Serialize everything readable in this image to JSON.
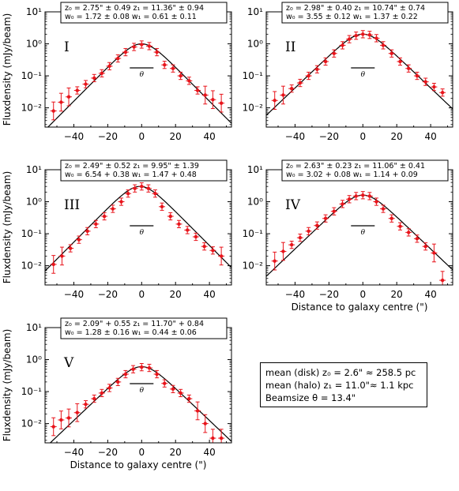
{
  "chart_data": [
    {
      "type": "scatter",
      "panel": "I",
      "fit_text": [
        "z₀ = 2.75\" ± 0.49 z₁ = 11.36\" ± 0.94",
        "w₀ = 1.72 ± 0.08 w₁ = 0.61 ± 0.11"
      ],
      "theta_label": "θ",
      "ylabel": "Fluxdensity (mJy/beam)",
      "xlabel": "",
      "xlim": [
        -57,
        53
      ],
      "ylim": [
        0.0025,
        10
      ],
      "yscale": "log",
      "x_ticks": [
        "−40",
        "−20",
        "0",
        "20",
        "40"
      ],
      "y_ticks": [
        "10⁻²",
        "10⁻¹",
        "10⁰",
        "10¹"
      ],
      "data": [
        {
          "x": -52,
          "y": 0.008
        },
        {
          "x": -47.5,
          "y": 0.015
        },
        {
          "x": -43,
          "y": 0.022
        },
        {
          "x": -38,
          "y": 0.035
        },
        {
          "x": -33,
          "y": 0.055
        },
        {
          "x": -28,
          "y": 0.085
        },
        {
          "x": -23.5,
          "y": 0.12
        },
        {
          "x": -19,
          "y": 0.2
        },
        {
          "x": -14,
          "y": 0.35
        },
        {
          "x": -9.5,
          "y": 0.55
        },
        {
          "x": -4.5,
          "y": 0.8
        },
        {
          "x": 0,
          "y": 0.95
        },
        {
          "x": 4.5,
          "y": 0.85
        },
        {
          "x": 9,
          "y": 0.55
        },
        {
          "x": 13.5,
          "y": 0.22
        },
        {
          "x": 18.5,
          "y": 0.17
        },
        {
          "x": 23,
          "y": 0.1
        },
        {
          "x": 28,
          "y": 0.07
        },
        {
          "x": 33,
          "y": 0.035
        },
        {
          "x": 37.5,
          "y": 0.025
        },
        {
          "x": 42,
          "y": 0.018
        },
        {
          "x": 47,
          "y": 0.014
        }
      ],
      "fit": {
        "x0": 0,
        "peak": 1.0,
        "scale_left": 9.0,
        "scale_right": 9.0
      }
    },
    {
      "type": "scatter",
      "panel": "II",
      "fit_text": [
        "z₀ = 2.98\" ± 0.40 z₁ = 10.74\" ± 0.74",
        "w₀ = 3.55 ± 0.12 w₁ = 1.37 ± 0.22"
      ],
      "theta_label": "θ",
      "ylabel": "",
      "xlabel": "",
      "xlim": [
        -57,
        53
      ],
      "ylim": [
        0.0025,
        10
      ],
      "yscale": "log",
      "x_ticks": [
        "−40",
        "−20",
        "0",
        "20",
        "40"
      ],
      "y_ticks": [
        "10⁻²",
        "10⁻¹",
        "10⁰",
        "10¹"
      ],
      "data": [
        {
          "x": -52,
          "y": 0.017
        },
        {
          "x": -47,
          "y": 0.025
        },
        {
          "x": -42,
          "y": 0.04
        },
        {
          "x": -37,
          "y": 0.06
        },
        {
          "x": -32,
          "y": 0.1
        },
        {
          "x": -27,
          "y": 0.16
        },
        {
          "x": -22,
          "y": 0.28
        },
        {
          "x": -17,
          "y": 0.5
        },
        {
          "x": -12,
          "y": 0.9
        },
        {
          "x": -8,
          "y": 1.4
        },
        {
          "x": -4,
          "y": 1.8
        },
        {
          "x": 0,
          "y": 2.0
        },
        {
          "x": 4,
          "y": 1.9
        },
        {
          "x": 8,
          "y": 1.5
        },
        {
          "x": 12,
          "y": 0.9
        },
        {
          "x": 17,
          "y": 0.5
        },
        {
          "x": 22,
          "y": 0.28
        },
        {
          "x": 27,
          "y": 0.17
        },
        {
          "x": 32,
          "y": 0.1
        },
        {
          "x": 37,
          "y": 0.065
        },
        {
          "x": 42,
          "y": 0.045
        },
        {
          "x": 47,
          "y": 0.03
        }
      ],
      "fit": {
        "x0": 0,
        "peak": 2.0,
        "scale_left": 9.5,
        "scale_right": 9.5
      }
    },
    {
      "type": "scatter",
      "panel": "III",
      "fit_text": [
        "z₀ = 2.49\" ± 0.52 z₁ = 9.95\" ± 1.39",
        "w₀ = 6.54 + 0.38 w₁ = 1.47 + 0.48"
      ],
      "theta_label": "θ",
      "ylabel": "Fluxdensity (mJy/beam)",
      "xlabel": "",
      "xlim": [
        -57,
        53
      ],
      "ylim": [
        0.0025,
        10
      ],
      "yscale": "log",
      "x_ticks": [
        "−40",
        "−20",
        "0",
        "20",
        "40"
      ],
      "y_ticks": [
        "10⁻²",
        "10⁻¹",
        "10⁰",
        "10¹"
      ],
      "data": [
        {
          "x": -52,
          "y": 0.011
        },
        {
          "x": -47,
          "y": 0.02
        },
        {
          "x": -42,
          "y": 0.035
        },
        {
          "x": -37,
          "y": 0.065
        },
        {
          "x": -32,
          "y": 0.12
        },
        {
          "x": -27,
          "y": 0.2
        },
        {
          "x": -22,
          "y": 0.35
        },
        {
          "x": -17,
          "y": 0.6
        },
        {
          "x": -12,
          "y": 1.0
        },
        {
          "x": -8,
          "y": 1.8
        },
        {
          "x": -4,
          "y": 2.6
        },
        {
          "x": 0,
          "y": 3.0
        },
        {
          "x": 4,
          "y": 2.6
        },
        {
          "x": 8,
          "y": 1.8
        },
        {
          "x": 12,
          "y": 0.7
        },
        {
          "x": 17,
          "y": 0.35
        },
        {
          "x": 22,
          "y": 0.2
        },
        {
          "x": 27,
          "y": 0.13
        },
        {
          "x": 32,
          "y": 0.08
        },
        {
          "x": 37,
          "y": 0.04
        },
        {
          "x": 42,
          "y": 0.03
        },
        {
          "x": 47,
          "y": 0.02
        }
      ],
      "fit": {
        "x0": -1,
        "peak": 3.0,
        "scale_left": 9.0,
        "scale_right": 9.0
      }
    },
    {
      "type": "scatter",
      "panel": "IV",
      "fit_text": [
        "z₀ = 2.63\" ± 0.23 z₁ = 11.06\" ± 0.41",
        "w₀ = 3.02 + 0.08 w₁ = 1.14 + 0.09"
      ],
      "theta_label": "θ",
      "ylabel": "",
      "xlabel": "Distance to galaxy centre (\")",
      "xlim": [
        -57,
        53
      ],
      "ylim": [
        0.0025,
        10
      ],
      "yscale": "log",
      "x_ticks": [
        "−40",
        "−20",
        "0",
        "20",
        "40"
      ],
      "y_ticks": [
        "10⁻²",
        "10⁻¹",
        "10⁰",
        "10¹"
      ],
      "data": [
        {
          "x": -52,
          "y": 0.014
        },
        {
          "x": -47,
          "y": 0.028
        },
        {
          "x": -42,
          "y": 0.045
        },
        {
          "x": -37,
          "y": 0.075
        },
        {
          "x": -32,
          "y": 0.12
        },
        {
          "x": -27,
          "y": 0.18
        },
        {
          "x": -22,
          "y": 0.3
        },
        {
          "x": -17,
          "y": 0.5
        },
        {
          "x": -12,
          "y": 0.85
        },
        {
          "x": -8,
          "y": 1.2
        },
        {
          "x": -4,
          "y": 1.5
        },
        {
          "x": 0,
          "y": 1.6
        },
        {
          "x": 4,
          "y": 1.5
        },
        {
          "x": 8,
          "y": 1.0
        },
        {
          "x": 12,
          "y": 0.6
        },
        {
          "x": 17,
          "y": 0.3
        },
        {
          "x": 22,
          "y": 0.17
        },
        {
          "x": 27,
          "y": 0.11
        },
        {
          "x": 32,
          "y": 0.07
        },
        {
          "x": 37,
          "y": 0.04
        },
        {
          "x": 42,
          "y": 0.025
        },
        {
          "x": 47,
          "y": 0.0035
        }
      ],
      "fit": {
        "x0": 0,
        "peak": 1.6,
        "scale_left": 9.5,
        "scale_right": 9.5
      }
    },
    {
      "type": "scatter",
      "panel": "V",
      "fit_text": [
        "z₀ = 2.09\" + 0.55 z₁ = 11.70\" + 0.84",
        "w₀ = 1.28 ± 0.16 w₁ = 0.44 ± 0.06"
      ],
      "theta_label": "θ",
      "ylabel": "Fluxdensity (mJy/beam)",
      "xlabel": "Distance to galaxy centre (\")",
      "xlim": [
        -57,
        53
      ],
      "ylim": [
        0.0025,
        10
      ],
      "yscale": "log",
      "x_ticks": [
        "−40",
        "−20",
        "0",
        "20",
        "40"
      ],
      "y_ticks": [
        "10⁻²",
        "10⁻¹",
        "10⁰",
        "10¹"
      ],
      "data": [
        {
          "x": -52,
          "y": 0.008
        },
        {
          "x": -47.5,
          "y": 0.013
        },
        {
          "x": -43,
          "y": 0.015
        },
        {
          "x": -38,
          "y": 0.022
        },
        {
          "x": -33,
          "y": 0.04
        },
        {
          "x": -28,
          "y": 0.06
        },
        {
          "x": -23.5,
          "y": 0.09
        },
        {
          "x": -19,
          "y": 0.13
        },
        {
          "x": -14,
          "y": 0.2
        },
        {
          "x": -9.5,
          "y": 0.35
        },
        {
          "x": -5,
          "y": 0.5
        },
        {
          "x": 0,
          "y": 0.58
        },
        {
          "x": 4.5,
          "y": 0.55
        },
        {
          "x": 9,
          "y": 0.35
        },
        {
          "x": 13.5,
          "y": 0.18
        },
        {
          "x": 18.5,
          "y": 0.12
        },
        {
          "x": 23,
          "y": 0.09
        },
        {
          "x": 28,
          "y": 0.06
        },
        {
          "x": 33,
          "y": 0.025
        },
        {
          "x": 37.5,
          "y": 0.01
        },
        {
          "x": 42,
          "y": 0.0035
        },
        {
          "x": 47,
          "y": 0.0035
        }
      ],
      "fit": {
        "x0": 0,
        "peak": 0.6,
        "scale_left": 9.5,
        "scale_right": 9.5
      }
    }
  ],
  "summary": {
    "line1": "mean (disk) z₀ = 2.6\" ≈ 258.5 pc",
    "line2": "mean (halo) z₁ = 11.0\"≈ 1.1 kpc",
    "line3": "Beamsize θ = 13.4\""
  },
  "colors": {
    "data": "#e8141b",
    "fit": "#000000",
    "axes": "#000000"
  }
}
